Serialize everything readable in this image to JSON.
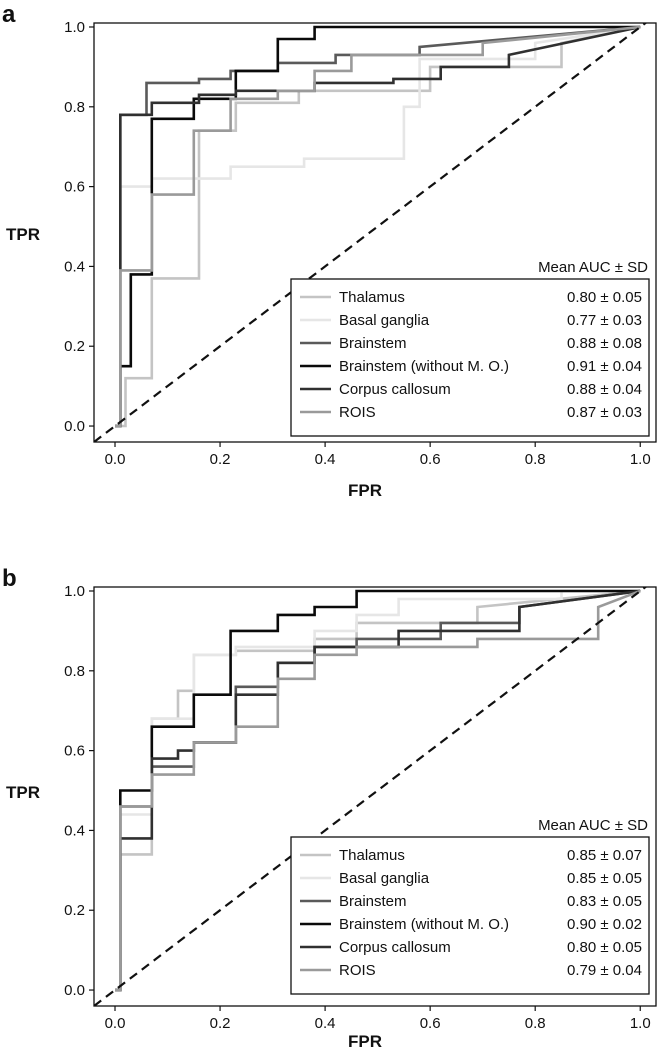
{
  "chart_data": [
    {
      "panel_label": "a",
      "type": "line",
      "xlabel": "FPR",
      "ylabel": "TPR",
      "xlim": [
        -0.04,
        1.03
      ],
      "ylim": [
        -0.04,
        1.01
      ],
      "xticks": [
        "0.0",
        "0.2",
        "0.4",
        "0.6",
        "0.8",
        "1.0"
      ],
      "yticks": [
        "0.0",
        "0.2",
        "0.4",
        "0.6",
        "0.8",
        "1.0"
      ],
      "legend_title": "Mean AUC ± SD",
      "legend_position": "bottom-right",
      "reference_line": "dashed diagonal",
      "series": [
        {
          "name": "Thalamus",
          "auc": "0.80 ± 0.05",
          "color": "#c4c4c4",
          "x": [
            0,
            0.02,
            0.02,
            0.07,
            0.07,
            0.16,
            0.16,
            0.23,
            0.23,
            0.35,
            0.35,
            0.6,
            0.6,
            0.85,
            0.85,
            1.0
          ],
          "y": [
            0,
            0,
            0.12,
            0.12,
            0.37,
            0.37,
            0.74,
            0.74,
            0.81,
            0.81,
            0.84,
            0.84,
            0.9,
            0.9,
            0.96,
            1.0
          ]
        },
        {
          "name": "Basal ganglia",
          "auc": "0.77 ± 0.03",
          "color": "#e6e6e6",
          "x": [
            0,
            0.01,
            0.01,
            0.07,
            0.07,
            0.22,
            0.22,
            0.36,
            0.36,
            0.55,
            0.55,
            0.58,
            0.58,
            0.8,
            0.8,
            1.0
          ],
          "y": [
            0,
            0,
            0.6,
            0.6,
            0.62,
            0.62,
            0.65,
            0.65,
            0.67,
            0.67,
            0.8,
            0.8,
            0.92,
            0.92,
            0.96,
            1.0
          ]
        },
        {
          "name": "Brainstem",
          "auc": "0.88 ± 0.08",
          "color": "#5a5a5a",
          "x": [
            0,
            0.01,
            0.01,
            0.06,
            0.06,
            0.16,
            0.16,
            0.22,
            0.22,
            0.31,
            0.31,
            0.42,
            0.42,
            0.58,
            0.58,
            1.0
          ],
          "y": [
            0,
            0,
            0.78,
            0.78,
            0.86,
            0.86,
            0.87,
            0.87,
            0.89,
            0.89,
            0.91,
            0.91,
            0.93,
            0.93,
            0.95,
            1.0
          ]
        },
        {
          "name": "Brainstem (without M. O.)",
          "auc": "0.91 ± 0.04",
          "color": "#0a0a0a",
          "x": [
            0,
            0.01,
            0.01,
            0.03,
            0.03,
            0.07,
            0.07,
            0.15,
            0.15,
            0.23,
            0.23,
            0.31,
            0.31,
            0.38,
            0.38,
            1.0
          ],
          "y": [
            0,
            0,
            0.15,
            0.15,
            0.38,
            0.38,
            0.77,
            0.77,
            0.82,
            0.82,
            0.89,
            0.89,
            0.97,
            0.97,
            1.0,
            1.0
          ]
        },
        {
          "name": "Corpus callosum",
          "auc": "0.88 ± 0.04",
          "color": "#303030",
          "x": [
            0,
            0.01,
            0.01,
            0.07,
            0.07,
            0.16,
            0.16,
            0.23,
            0.23,
            0.38,
            0.38,
            0.53,
            0.53,
            0.62,
            0.62,
            0.75,
            0.75,
            1.0
          ],
          "y": [
            0,
            0,
            0.78,
            0.78,
            0.81,
            0.81,
            0.83,
            0.83,
            0.84,
            0.84,
            0.86,
            0.86,
            0.87,
            0.87,
            0.9,
            0.9,
            0.93,
            1.0
          ]
        },
        {
          "name": "ROIS",
          "auc": "0.87 ± 0.03",
          "color": "#9a9a9a",
          "x": [
            0,
            0.01,
            0.01,
            0.07,
            0.07,
            0.15,
            0.15,
            0.22,
            0.22,
            0.31,
            0.31,
            0.38,
            0.38,
            0.45,
            0.45,
            0.7,
            0.7,
            1.0
          ],
          "y": [
            0,
            0,
            0.39,
            0.39,
            0.58,
            0.58,
            0.74,
            0.74,
            0.82,
            0.82,
            0.84,
            0.84,
            0.89,
            0.89,
            0.93,
            0.93,
            0.96,
            1.0
          ]
        }
      ]
    },
    {
      "panel_label": "b",
      "type": "line",
      "xlabel": "FPR",
      "ylabel": "TPR",
      "xlim": [
        -0.04,
        1.03
      ],
      "ylim": [
        -0.04,
        1.01
      ],
      "xticks": [
        "0.0",
        "0.2",
        "0.4",
        "0.6",
        "0.8",
        "1.0"
      ],
      "yticks": [
        "0.0",
        "0.2",
        "0.4",
        "0.6",
        "0.8",
        "1.0"
      ],
      "legend_title": "Mean AUC ± SD",
      "legend_position": "bottom-right",
      "reference_line": "dashed diagonal",
      "series": [
        {
          "name": "Thalamus",
          "auc": "0.85 ± 0.07",
          "color": "#c4c4c4",
          "x": [
            0,
            0.01,
            0.01,
            0.07,
            0.07,
            0.12,
            0.12,
            0.15,
            0.15,
            0.23,
            0.23,
            0.38,
            0.38,
            0.46,
            0.46,
            0.69,
            0.69,
            1.0
          ],
          "y": [
            0,
            0,
            0.34,
            0.34,
            0.68,
            0.68,
            0.75,
            0.75,
            0.84,
            0.84,
            0.85,
            0.85,
            0.88,
            0.88,
            0.92,
            0.92,
            0.96,
            1.0
          ]
        },
        {
          "name": "Basal ganglia",
          "auc": "0.85 ± 0.05",
          "color": "#e6e6e6",
          "x": [
            0,
            0.01,
            0.01,
            0.07,
            0.07,
            0.15,
            0.15,
            0.23,
            0.23,
            0.38,
            0.38,
            0.46,
            0.46,
            0.54,
            0.54,
            0.85,
            0.85,
            1.0
          ],
          "y": [
            0,
            0,
            0.44,
            0.44,
            0.68,
            0.68,
            0.84,
            0.84,
            0.86,
            0.86,
            0.9,
            0.9,
            0.94,
            0.94,
            0.98,
            0.98,
            1.0,
            1.0
          ]
        },
        {
          "name": "Brainstem",
          "auc": "0.83 ± 0.05",
          "color": "#5a5a5a",
          "x": [
            0,
            0.01,
            0.01,
            0.07,
            0.07,
            0.15,
            0.15,
            0.23,
            0.23,
            0.31,
            0.31,
            0.38,
            0.38,
            0.46,
            0.46,
            0.62,
            0.62,
            0.77,
            0.77,
            1.0
          ],
          "y": [
            0,
            0,
            0.46,
            0.46,
            0.56,
            0.56,
            0.62,
            0.62,
            0.76,
            0.76,
            0.82,
            0.82,
            0.86,
            0.86,
            0.88,
            0.88,
            0.92,
            0.92,
            0.96,
            1.0
          ]
        },
        {
          "name": "Brainstem (without M. O.)",
          "auc": "0.90 ± 0.02",
          "color": "#0a0a0a",
          "x": [
            0,
            0.01,
            0.01,
            0.07,
            0.07,
            0.15,
            0.15,
            0.22,
            0.22,
            0.31,
            0.31,
            0.38,
            0.38,
            0.46,
            0.46,
            0.62,
            0.62,
            0.85,
            0.85,
            1.0
          ],
          "y": [
            0,
            0,
            0.5,
            0.5,
            0.66,
            0.66,
            0.74,
            0.74,
            0.9,
            0.9,
            0.94,
            0.94,
            0.96,
            0.96,
            1.0,
            1.0,
            1.0,
            1.0,
            1.0,
            1.0
          ]
        },
        {
          "name": "Corpus callosum",
          "auc": "0.80 ± 0.05",
          "color": "#303030",
          "x": [
            0,
            0.01,
            0.01,
            0.07,
            0.07,
            0.12,
            0.12,
            0.15,
            0.15,
            0.23,
            0.23,
            0.31,
            0.31,
            0.38,
            0.38,
            0.54,
            0.54,
            0.77,
            0.77,
            1.0
          ],
          "y": [
            0,
            0,
            0.38,
            0.38,
            0.58,
            0.58,
            0.6,
            0.6,
            0.62,
            0.62,
            0.74,
            0.74,
            0.82,
            0.82,
            0.86,
            0.86,
            0.9,
            0.9,
            0.96,
            1.0
          ]
        },
        {
          "name": "ROIS",
          "auc": "0.79 ± 0.04",
          "color": "#9a9a9a",
          "x": [
            0,
            0.01,
            0.01,
            0.07,
            0.07,
            0.15,
            0.15,
            0.23,
            0.23,
            0.31,
            0.31,
            0.38,
            0.38,
            0.46,
            0.46,
            0.69,
            0.69,
            0.92,
            0.92,
            1.0
          ],
          "y": [
            0,
            0,
            0.46,
            0.46,
            0.54,
            0.54,
            0.62,
            0.62,
            0.66,
            0.66,
            0.78,
            0.78,
            0.84,
            0.84,
            0.86,
            0.86,
            0.88,
            0.88,
            0.96,
            1.0
          ]
        }
      ]
    }
  ]
}
